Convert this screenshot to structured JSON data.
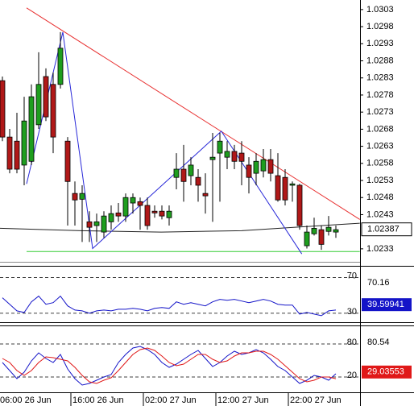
{
  "chart_data": [
    {
      "type": "candlestick",
      "categories": [
        "06:00 26 Jun",
        null,
        null,
        null,
        null,
        null,
        null,
        null,
        null,
        null,
        "16:00 26 Jun",
        null,
        null,
        null,
        null,
        null,
        null,
        null,
        null,
        null,
        "02:00 27 Jun",
        null,
        null,
        null,
        null,
        null,
        null,
        null,
        null,
        null,
        "12:00 27 Jun",
        null,
        null,
        null,
        null,
        null,
        null,
        null,
        null,
        null,
        "22:00 27 Jun",
        null,
        null,
        null,
        null,
        null,
        null
      ],
      "open": [
        1.02822,
        1.02657,
        1.02645,
        1.02575,
        1.02586,
        1.02693,
        1.02834,
        1.02811,
        1.02811,
        1.02645,
        1.02492,
        1.02475,
        1.02409,
        1.02398,
        1.02379,
        1.02409,
        1.02435,
        1.02426,
        1.02464,
        1.02468,
        1.02457,
        1.0244,
        1.0244,
        1.02421,
        1.02539,
        1.02563,
        1.02544,
        1.02539,
        1.02492,
        1.02591,
        1.0261,
        1.02598,
        1.02615,
        1.0261,
        1.02575,
        1.02551,
        1.02558,
        1.02591,
        1.02544,
        1.02539,
        1.02516,
        1.02516,
        1.02339,
        1.02374,
        1.02386,
        1.02381,
        1.02379
      ],
      "high": [
        1.02834,
        1.02681,
        1.02728,
        1.02775,
        1.02811,
        1.02905,
        1.02858,
        1.02846,
        1.02964,
        1.02657,
        1.02527,
        1.02516,
        1.0244,
        1.02433,
        1.0244,
        1.02457,
        1.02464,
        1.02492,
        1.02492,
        1.0248,
        1.0248,
        1.02457,
        1.02457,
        1.02457,
        1.0261,
        1.02634,
        1.02598,
        1.02563,
        1.02551,
        1.02669,
        1.02669,
        1.02645,
        1.02634,
        1.02645,
        1.02598,
        1.0261,
        1.02622,
        1.02622,
        1.0261,
        1.02563,
        1.02527,
        1.0252,
        1.02398,
        1.02421,
        1.02398,
        1.02426,
        1.02398
      ],
      "low": [
        1.02645,
        1.02551,
        1.02551,
        1.02516,
        1.02575,
        1.02681,
        1.02704,
        1.0261,
        1.02799,
        1.02398,
        1.02398,
        1.0235,
        1.0235,
        1.0235,
        1.02362,
        1.02386,
        1.02409,
        1.02409,
        1.02433,
        1.02386,
        1.02386,
        1.02421,
        1.02416,
        1.02398,
        1.02504,
        1.02468,
        1.02516,
        1.02468,
        1.02433,
        1.02409,
        1.02468,
        1.02563,
        1.02563,
        1.02516,
        1.02492,
        1.02516,
        1.02539,
        1.02527,
        1.02468,
        1.02457,
        1.02468,
        1.02386,
        1.02331,
        1.02369,
        1.02327,
        1.02369,
        1.02362
      ],
      "close": [
        1.02657,
        1.02563,
        1.02563,
        1.02704,
        1.02775,
        1.02811,
        1.02716,
        1.02657,
        1.02917,
        1.02527,
        1.02473,
        1.02492,
        1.02393,
        1.02409,
        1.02426,
        1.02433,
        1.02426,
        1.0248,
        1.0248,
        1.02457,
        1.02398,
        1.02435,
        1.02426,
        1.0244,
        1.02563,
        1.02527,
        1.02575,
        1.02516,
        1.02485,
        1.02598,
        1.02645,
        1.02615,
        1.02586,
        1.02586,
        1.02539,
        1.02586,
        1.02591,
        1.02551,
        1.02473,
        1.02473,
        1.0252,
        1.02398,
        1.02379,
        1.0239,
        1.02343,
        1.02393,
        1.02386
      ],
      "up_color": "#1e9e1e",
      "down_color": "#b01818",
      "ylim": [
        1.02292,
        1.03058
      ],
      "yticks": [
        1.0303,
        1.0298,
        1.0293,
        1.0288,
        1.0283,
        1.0278,
        1.0273,
        1.0268,
        1.0263,
        1.0258,
        1.0253,
        1.0248,
        1.0243,
        1.0233
      ],
      "overlays": [
        {
          "color": "#222222",
          "x": [
            -0.33,
            10.8,
            21.9,
            33,
            44.1,
            49.3
          ],
          "values": [
            1.0239,
            1.02383,
            1.02379,
            1.02383,
            1.02398,
            1.02405
          ]
        },
        {
          "color": "#33cc33",
          "x": [
            3.33,
            49.3
          ],
          "values": [
            1.02322,
            1.02322
          ]
        },
        {
          "color": "#e83030",
          "x": [
            3.33,
            49.3
          ],
          "values": [
            1.03035,
            1.02416
          ]
        },
        {
          "color": "#2828d8",
          "x": [
            3.33,
            8.33,
            12.44,
            30.2,
            41.3
          ],
          "values": [
            1.0252,
            1.02964,
            1.02331,
            1.02674,
            1.02315
          ]
        }
      ],
      "price_label": 1.02387
    },
    {
      "type": "line",
      "series": [
        {
          "color": "#1414c8",
          "values": [
            47.3,
            40,
            32.7,
            30.9,
            42.7,
            49.1,
            40,
            41.8,
            49.1,
            38.2,
            33.6,
            32.7,
            30,
            32.7,
            33.6,
            32.7,
            34.5,
            34.5,
            35.5,
            34.5,
            32.7,
            35.5,
            36.4,
            35.5,
            42.7,
            40,
            41.8,
            40,
            38.2,
            42.7,
            45.5,
            44.5,
            45.5,
            43.6,
            41.8,
            43.6,
            45.5,
            43.6,
            40,
            39.1,
            39.1,
            29.1,
            30.9,
            29.1,
            27.3,
            32.7,
            33.6
          ]
        }
      ],
      "ylim": [
        20,
        82
      ],
      "yticks": [
        30,
        70
      ],
      "scale_max": 70.16,
      "current_label": 39.59941,
      "current_label_color": "#1414c8"
    },
    {
      "type": "line",
      "series": [
        {
          "color": "#1414c8",
          "values": [
            46.4,
            31.7,
            17,
            28.8,
            49.3,
            63.9,
            53.7,
            46.4,
            61,
            34.6,
            17,
            5.4,
            8.3,
            14.1,
            20,
            24.4,
            46.4,
            61,
            72.7,
            75.6,
            69.8,
            61,
            46.4,
            37.6,
            43.4,
            52.2,
            61,
            68.3,
            53.7,
            39,
            46.4,
            58.1,
            66.9,
            61,
            63.9,
            69.8,
            63.9,
            52.2,
            39,
            31.7,
            20,
            8.3,
            14.1,
            22.9,
            20,
            14.1,
            25.9
          ]
        },
        {
          "color": "#e01818",
          "values": [
            53.7,
            46.4,
            31.7,
            22.9,
            31.7,
            46.4,
            56.6,
            55.1,
            52.2,
            49.3,
            37.6,
            22.9,
            11.2,
            8.3,
            14.1,
            18.5,
            31.7,
            46.4,
            61,
            69.8,
            72.7,
            68.3,
            58.1,
            46.4,
            40.5,
            43.4,
            52.2,
            61,
            61,
            52.2,
            46.4,
            49.3,
            58.1,
            63.9,
            63.9,
            66.9,
            66.9,
            61,
            52.2,
            40.5,
            28.8,
            17,
            11.2,
            14.1,
            20,
            20,
            17
          ]
        }
      ],
      "ylim": [
        -7.8,
        112.2
      ],
      "yticks": [
        20,
        80
      ],
      "scale_max": 80.54,
      "current_label": 29.03553,
      "current_label_color": "#e01818"
    }
  ]
}
